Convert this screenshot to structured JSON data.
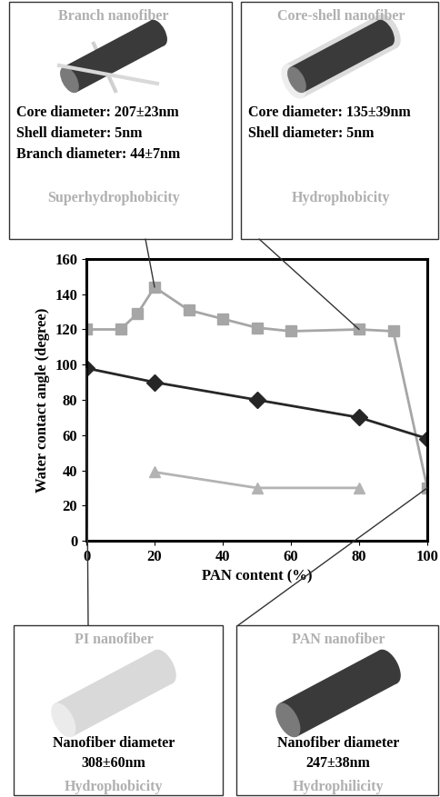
{
  "chart_data": {
    "type": "line",
    "x_label": "PAN content (%)",
    "y_label": "Water contact angle (degree)",
    "xlim": [
      0,
      100
    ],
    "ylim": [
      0,
      160
    ],
    "xticks": [
      0,
      20,
      40,
      60,
      80,
      100
    ],
    "yticks": [
      0,
      20,
      40,
      60,
      80,
      100,
      120,
      140,
      160
    ],
    "grid": false,
    "series": [
      {
        "color": "#a6a6a6",
        "marker": "square",
        "line_style": "solid",
        "x": [
          0,
          10,
          15,
          20,
          30,
          40,
          50,
          60,
          80,
          90,
          100
        ],
        "values": [
          120,
          120,
          129,
          144,
          131,
          126,
          121,
          119,
          120,
          119,
          30
        ]
      },
      {
        "color": "#262626",
        "marker": "diamond",
        "line_style": "solid",
        "x": [
          0,
          20,
          50,
          80,
          100
        ],
        "values": [
          98,
          90,
          80,
          70,
          58
        ]
      },
      {
        "color": "#b3b3b3",
        "marker": "triangle",
        "line_style": "solid",
        "x": [
          20,
          50,
          80
        ],
        "values": [
          39,
          30,
          30
        ]
      }
    ]
  },
  "annotations": [
    {
      "title": "Branch nanofiber",
      "details": [
        "Core diameter: 207±23nm",
        "Shell diameter: 5nm",
        "Branch diameter: 44±7nm"
      ],
      "property": "Superhydrophobicity",
      "points_to": [
        20,
        144
      ]
    },
    {
      "title": "Core-shell nanofiber",
      "details": [
        "Core diameter: 135±39nm",
        "Shell diameter: 5nm"
      ],
      "property": "Hydrophobicity",
      "points_to": [
        80,
        120
      ]
    },
    {
      "title": "PI nanofiber",
      "details": [
        "Nanofiber diameter",
        "308±60nm"
      ],
      "property": "Hydrophobicity",
      "points_to": [
        0,
        98
      ]
    },
    {
      "title": "PAN nanofiber",
      "details": [
        "Nanofiber diameter",
        "247±38nm"
      ],
      "property": "Hydrophilicity",
      "points_to": [
        100,
        30
      ]
    }
  ]
}
